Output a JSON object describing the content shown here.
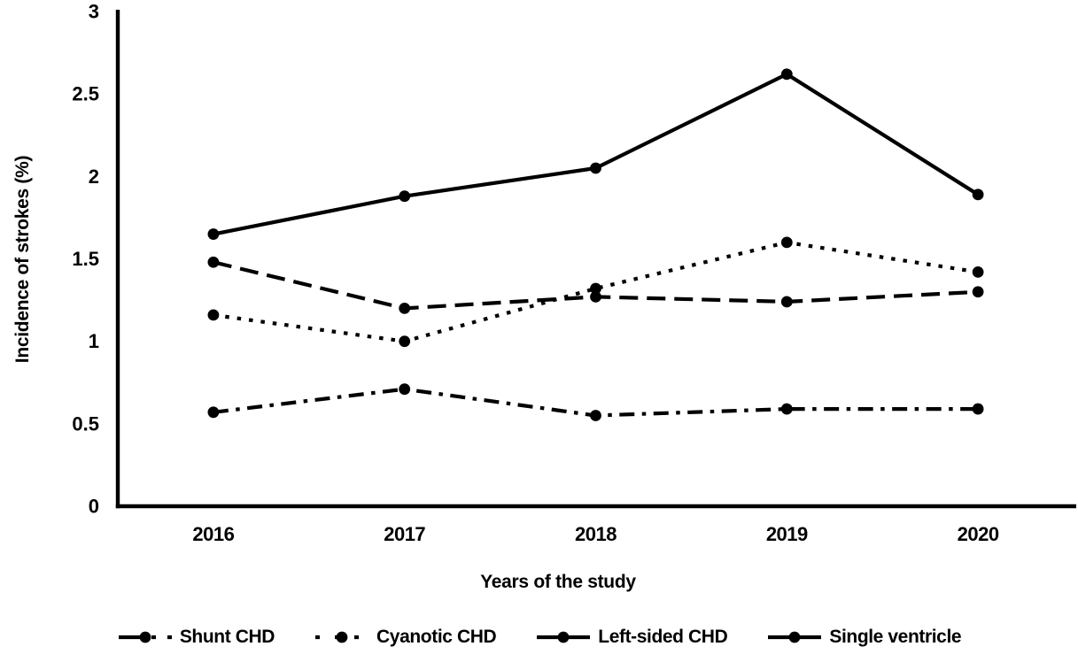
{
  "figure": {
    "background": "#ffffff",
    "ink_color": "#000000"
  },
  "chart_data": {
    "type": "line",
    "title": "",
    "categories": [
      "2016",
      "2017",
      "2018",
      "2019",
      "2020"
    ],
    "series": [
      {
        "name": "Shunt CHD",
        "values": [
          0.57,
          0.71,
          0.55,
          0.59,
          0.59
        ],
        "line_style": "dashdot",
        "marker": "circle",
        "color": "#000000"
      },
      {
        "name": "Cyanotic CHD",
        "values": [
          1.16,
          1.0,
          1.32,
          1.6,
          1.42
        ],
        "line_style": "dotted",
        "marker": "circle",
        "color": "#000000"
      },
      {
        "name": "Left-sided CHD",
        "values": [
          1.48,
          1.2,
          1.27,
          1.24,
          1.3
        ],
        "line_style": "dashed",
        "marker": "circle",
        "color": "#000000"
      },
      {
        "name": "Single ventricle",
        "values": [
          1.65,
          1.88,
          2.05,
          2.62,
          1.89
        ],
        "line_style": "solid",
        "marker": "circle",
        "color": "#000000"
      }
    ],
    "xlabel": "Years of the study",
    "ylabel": "Incidence of strokes (%)",
    "ylim": [
      0,
      3
    ],
    "yticks": [
      0,
      0.5,
      1,
      1.5,
      2,
      2.5,
      3
    ],
    "ytick_labels": [
      "0",
      "0.5",
      "1",
      "1.5",
      "2",
      "2.5",
      "3"
    ],
    "grid": false,
    "legend_position": "bottom",
    "legend": [
      "Shunt CHD",
      "Cyanotic CHD",
      "Left-sided CHD",
      "Single ventricle"
    ]
  }
}
